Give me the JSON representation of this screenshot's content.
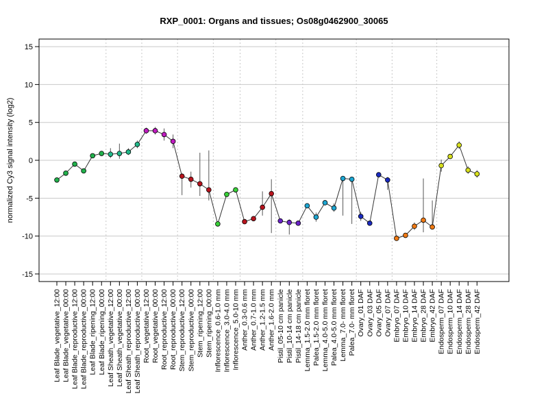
{
  "chart_data": {
    "type": "line",
    "title": "RXP_0001: Organs and tissues; Os08g0462900_30065",
    "xlabel": "",
    "ylabel": "normalized Cy3 signal intensity (log2)",
    "ylim": [
      -16,
      16
    ],
    "yticks": [
      -15,
      -10,
      -5,
      0,
      5,
      10,
      15
    ],
    "grid": "horizontal at y ticks; dotted vertical separators between tissue groups",
    "categories": [
      "Leaf Blade_vegetative_12:00",
      "Leaf Blade_vegetative_00:00",
      "Leaf Blade_reproductive_12:00",
      "Leaf Blade_reproductive_00:00",
      "Leaf Blade_ripening_12:00",
      "Leaf Blade_ripening_00:00",
      "Leaf Sheath_vegetative_12:00",
      "Leaf Sheath_vegetative_00:00",
      "Leaf Sheath_reproductive_12:00",
      "Leaf Sheath_reproductive_00:00",
      "Root_vegetative_12:00",
      "Root_vegetative_00:00",
      "Root_reproductive_12:00",
      "Root_reproductive_00:00",
      "Stem_reproductive_12:00",
      "Stem_reproductive_00:00",
      "Stem_ripening_12:00",
      "Stem_ripening_00:00",
      "Inflorescence_0.6-1.0 mm",
      "Inflorescence_3.0-4.0 mm",
      "Inflorescence_5.0-10 mm",
      "Anther_0.3-0.6 mm",
      "Anther_0.7-1.0 mm",
      "Anther_1.2-1.5 mm",
      "Anther_1.6-2.0 mm",
      "Pistil_05-10 cm panicle",
      "Pistil_10-14 cm panicle",
      "Pistil_14-18 cm panicle",
      "Lemma_1.5-2.0 mm floret",
      "Palea_1.5-2.0 mm floret",
      "Lemma_4.0-5.0 mm floret",
      "Palea_4.0-5.0 mm floret",
      "Lemma_7.0- mm floret",
      "Palea_7.0- mm floret",
      "Ovary_01 DAF",
      "Ovary_03 DAF",
      "Ovary_05 DAF",
      "Ovary_07 DAF",
      "Embryo_07 DAF",
      "Embryo_10 DAF",
      "Embryo_14 DAF",
      "Embryo_28 DAF",
      "Embryo_42 DAF",
      "Endosperm_07 DAF",
      "Endosperm_10 DAF",
      "Endosperm_14 DAF",
      "Endosperm_28 DAF",
      "Endosperm_42 DAF"
    ],
    "values": [
      -2.6,
      -1.7,
      -0.5,
      -1.4,
      0.6,
      0.9,
      0.8,
      0.9,
      1.1,
      2.1,
      3.9,
      3.9,
      3.4,
      2.5,
      -2.1,
      -2.5,
      -3.1,
      -3.9,
      -8.4,
      -4.5,
      -3.9,
      -8.1,
      -7.7,
      -6.2,
      -4.4,
      -8.0,
      -8.2,
      -8.3,
      -6.0,
      -7.5,
      -5.6,
      -6.3,
      -2.4,
      -2.5,
      -7.4,
      -8.3,
      -1.9,
      -2.6,
      -10.3,
      -9.9,
      -8.7,
      -7.9,
      -8.8,
      -0.7,
      0.5,
      2.0,
      -1.3,
      -1.8
    ],
    "error_low": [
      -2.9,
      -1.9,
      -0.7,
      -1.7,
      0.4,
      0.7,
      0.3,
      0.2,
      0.7,
      1.6,
      3.5,
      3.4,
      2.6,
      1.6,
      -4.6,
      -3.6,
      -4.7,
      -5.3,
      -8.6,
      -4.7,
      -4.2,
      -8.3,
      -7.9,
      -7.3,
      -9.6,
      -8.2,
      -9.8,
      -8.5,
      -6.2,
      -8.1,
      -5.8,
      -6.8,
      -7.3,
      -8.4,
      -8.0,
      -8.5,
      -2.1,
      -3.9,
      -10.5,
      -10.1,
      -9.2,
      -9.5,
      -9.0,
      -1.5,
      0.3,
      1.5,
      -1.8,
      -2.3
    ],
    "error_high": [
      -2.3,
      -1.5,
      -0.3,
      -1.1,
      0.8,
      1.1,
      1.6,
      2.2,
      1.6,
      2.6,
      4.3,
      4.4,
      4.2,
      3.4,
      -1.9,
      -1.5,
      1.0,
      1.3,
      -8.2,
      -4.3,
      -3.7,
      -7.8,
      -7.5,
      -4.1,
      -2.5,
      -7.8,
      -7.8,
      -8.1,
      -5.8,
      -6.9,
      -5.4,
      -5.7,
      -2.2,
      -2.3,
      -6.8,
      -8.1,
      -1.7,
      -2.2,
      -10.1,
      -9.7,
      -8.2,
      -2.4,
      -5.3,
      0.1,
      0.7,
      2.5,
      -0.8,
      -1.3
    ],
    "colors": [
      "#22b14c",
      "#22b14c",
      "#22b14c",
      "#22b14c",
      "#22b14c",
      "#22b14c",
      "#22b98a",
      "#22b98a",
      "#22b98a",
      "#22b98a",
      "#c01cc0",
      "#c01cc0",
      "#c01cc0",
      "#c01cc0",
      "#b8141e",
      "#b8141e",
      "#b8141e",
      "#b8141e",
      "#38d038",
      "#38d038",
      "#38d038",
      "#b8141e",
      "#b8141e",
      "#b8141e",
      "#b8141e",
      "#6a22c8",
      "#6a22c8",
      "#6a22c8",
      "#1ea6d2",
      "#1ea6d2",
      "#1ea6d2",
      "#1ea6d2",
      "#1ea6d2",
      "#1ea6d2",
      "#1a2ac0",
      "#1a2ac0",
      "#1a2ac0",
      "#1a2ac0",
      "#f07a14",
      "#f07a14",
      "#f07a14",
      "#f07a14",
      "#f07a14",
      "#d8e01e",
      "#d8e01e",
      "#d8e01e",
      "#d8e01e",
      "#d8e01e"
    ],
    "group_separators_after_index": [
      5,
      9,
      13,
      17,
      20,
      24,
      27,
      33,
      37,
      42
    ]
  }
}
